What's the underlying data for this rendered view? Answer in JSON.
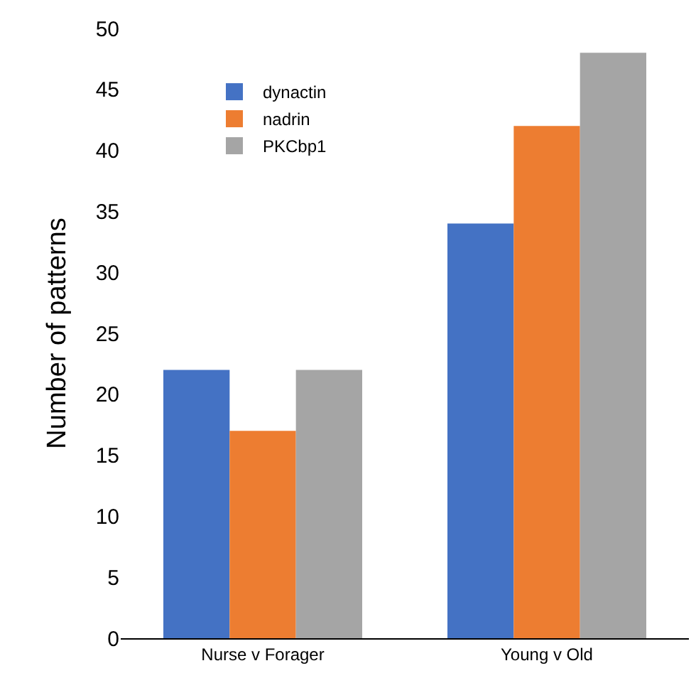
{
  "chart_data": {
    "type": "bar",
    "ylabel": "Number of patterns",
    "categories": [
      "Nurse v Forager",
      "Young v Old"
    ],
    "series": [
      {
        "name": "dynactin",
        "color": "#4472c4",
        "values": [
          22,
          34
        ]
      },
      {
        "name": "nadrin",
        "color": "#ed7d31",
        "values": [
          17,
          42
        ]
      },
      {
        "name": "PKCbp1",
        "color": "#a5a5a5",
        "values": [
          22,
          48
        ]
      }
    ],
    "ylim": [
      0,
      50
    ],
    "yticks": [
      0,
      5,
      10,
      15,
      20,
      25,
      30,
      35,
      40,
      45,
      50
    ],
    "legend": "top left"
  }
}
